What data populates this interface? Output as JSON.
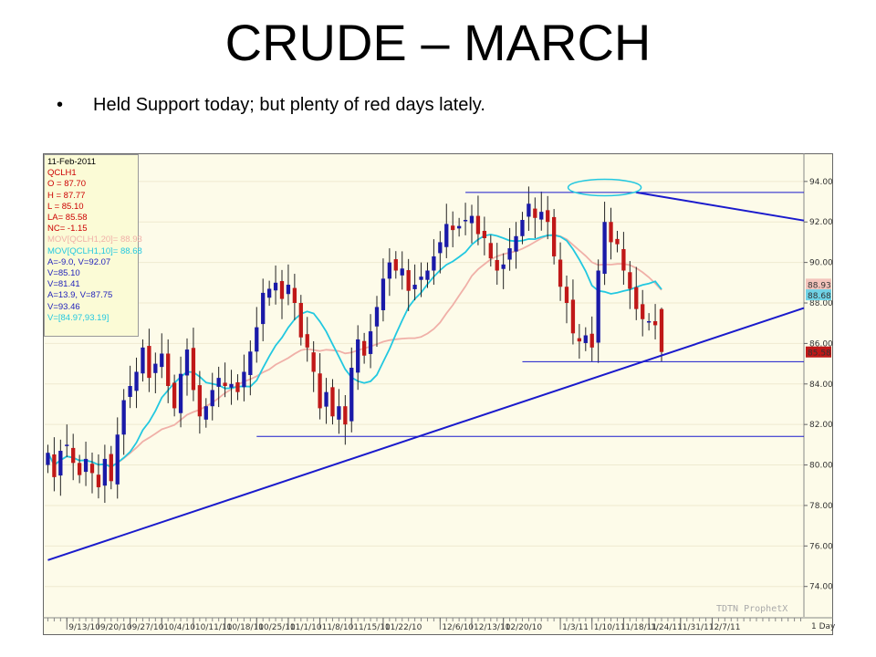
{
  "slide": {
    "title": "CRUDE – MARCH",
    "bullet_symbol": "•",
    "bullet": "Held Support today; but plenty of red days lately."
  },
  "info_box": {
    "lines": [
      {
        "text": "11-Feb-2011",
        "color": "#000000"
      },
      {
        "text": "QCLH1",
        "color": "#cc0000"
      },
      {
        "text": "O = 87.70",
        "color": "#cc0000"
      },
      {
        "text": "H = 87.77",
        "color": "#cc0000"
      },
      {
        "text": "L = 85.10",
        "color": "#cc0000"
      },
      {
        "text": "LA= 85.58",
        "color": "#cc0000"
      },
      {
        "text": "NC= -1.15",
        "color": "#cc0000"
      },
      {
        "text": "MOV[QCLH1,20]= 88.93",
        "color": "#f0b0a8"
      },
      {
        "text": "MOV[QCLH1,10]= 88.68",
        "color": "#22c8e0"
      },
      {
        "text": "A=-9.0, V=92.07",
        "color": "#2222bb"
      },
      {
        "text": "V=85.10",
        "color": "#2222bb"
      },
      {
        "text": "V=81.41",
        "color": "#2222bb"
      },
      {
        "text": "A=13.9, V=87.75",
        "color": "#2222bb"
      },
      {
        "text": "V=93.46",
        "color": "#2222bb"
      },
      {
        "text": "V=[84.97,93.19]",
        "color": "#22c8e0"
      }
    ]
  },
  "chart_data": {
    "type": "candlestick",
    "symbol": "QCLH1",
    "ylim": [
      72.5,
      95.3
    ],
    "y_ticks": [
      "74.00",
      "76.00",
      "78.00",
      "80.00",
      "82.00",
      "84.00",
      "86.00",
      "88.00",
      "90.00",
      "92.00",
      "94.00"
    ],
    "x_tick_labels": [
      "9/13/10",
      "9/20/10",
      "9/27/10",
      "10/4/10",
      "10/11/10",
      "10/18/10",
      "10/25/10",
      "11/1/10",
      "11/8/10",
      "11/15/10",
      "11/22/10",
      "12/6/10",
      "12/13/10",
      "12/20/10",
      "1/3/11",
      "1/10/11",
      "1/18/11",
      "1/24/11",
      "1/31/11",
      "2/7/11"
    ],
    "x_tick_bar_index": [
      3,
      8,
      13,
      18,
      23,
      28,
      33,
      38,
      43,
      48,
      53,
      62,
      67,
      72,
      81,
      86,
      91,
      95,
      100,
      105
    ],
    "period_label": "1 Day",
    "watermark": "TDTN ProphetX",
    "last_price_label": "85.58",
    "ma20_label": "88.93",
    "ma10_label": "88.68",
    "colors": {
      "up": "#1a1aa8",
      "down": "#c01818",
      "ma10": "#22c8e0",
      "ma20": "#f0b0a8",
      "trend": "#1a1acc",
      "background": "#fdfbe9"
    },
    "closes": [
      80.6,
      79.4,
      80.7,
      81.0,
      80.1,
      79.5,
      80.3,
      79.6,
      78.9,
      80.3,
      79.2,
      81.5,
      83.2,
      83.9,
      84.6,
      85.8,
      84.3,
      85.0,
      85.5,
      83.9,
      82.8,
      84.5,
      85.7,
      83.7,
      82.4,
      82.9,
      83.7,
      84.3,
      83.9,
      84.0,
      83.6,
      84.6,
      85.6,
      86.8,
      88.5,
      88.7,
      89.0,
      88.2,
      88.9,
      88.0,
      86.3,
      85.8,
      84.6,
      82.8,
      83.6,
      82.4,
      82.9,
      82.0,
      84.8,
      86.2,
      85.4,
      86.6,
      87.8,
      89.2,
      90.0,
      89.6,
      89.7,
      88.6,
      88.9,
      89.3,
      89.6,
      90.3,
      91.0,
      91.9,
      91.6,
      91.8,
      92.1,
      92.3,
      91.4,
      91.2,
      90.2,
      89.6,
      89.9,
      90.7,
      91.3,
      92.1,
      92.9,
      92.2,
      92.5,
      92.0,
      90.3,
      88.8,
      88.0,
      86.5,
      86.1,
      86.4,
      85.8,
      89.6,
      92.0,
      91.0,
      90.9,
      89.6,
      88.7,
      87.7,
      87.2,
      87.1,
      86.9,
      85.6
    ]
  },
  "trendlines": [
    {
      "name": "rising-support",
      "x0": 0,
      "y0": 75.3,
      "x1": 120,
      "y1": 87.75
    },
    {
      "name": "falling-resistance",
      "x0": 93,
      "y0": 93.46,
      "x1": 120,
      "y1": 92.07
    },
    {
      "name": "horizontal-81",
      "x0": 33,
      "y0": 81.41,
      "x1": 120,
      "y1": 81.41
    },
    {
      "name": "horizontal-85",
      "x0": 75,
      "y0": 85.1,
      "x1": 120,
      "y1": 85.1
    },
    {
      "name": "horizontal-93",
      "x0": 66,
      "y0": 93.46,
      "x1": 120,
      "y1": 93.46
    }
  ],
  "top_ellipse": {
    "x_center": 88,
    "y_center": 93.7
  }
}
